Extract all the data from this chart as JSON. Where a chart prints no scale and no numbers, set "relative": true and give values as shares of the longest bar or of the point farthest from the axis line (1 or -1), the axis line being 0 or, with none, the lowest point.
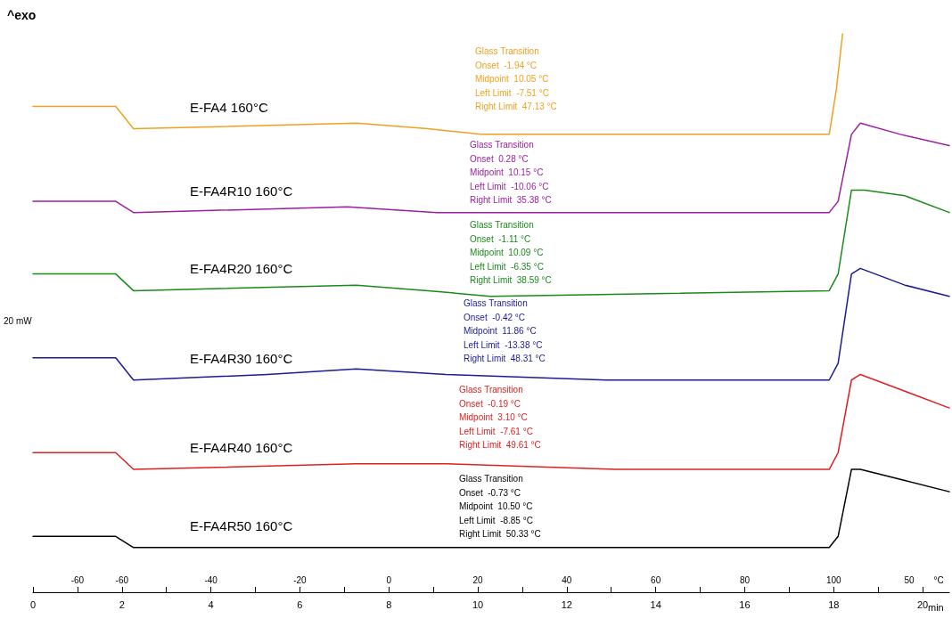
{
  "chart_data": {
    "type": "line",
    "relative": true,
    "xlabel": "min",
    "xlim": [
      0,
      20.6
    ],
    "xticks": [
      0,
      {
        "value": 1,
        "label": null
      },
      2,
      {
        "value": 3,
        "label": null
      },
      4,
      {
        "value": 5,
        "label": null
      },
      6,
      {
        "value": 7,
        "label": null
      },
      8,
      {
        "value": 9,
        "label": null
      },
      10,
      {
        "value": 11,
        "label": null
      },
      12,
      {
        "value": 13,
        "label": null
      },
      14,
      {
        "value": 15,
        "label": null
      },
      16,
      {
        "value": 17,
        "label": null
      },
      18,
      {
        "value": 19,
        "label": null
      },
      20
    ],
    "grid": false,
    "legend": false,
    "marker": "none",
    "line_style": "solid",
    "series": [
      {
        "name": "E-FA4 160°C",
        "color": "#f0a020",
        "x": [
          0,
          1.86,
          2.26,
          7.27,
          8.88,
          10.08,
          12.89,
          17.9,
          18.06,
          18.2
        ],
        "values": [
          0.87,
          0.87,
          0.83,
          0.84,
          0.83,
          0.82,
          0.82,
          0.82,
          0.9,
          1
        ]
      },
      {
        "name": "E-FA4R10 160°C",
        "color": "#9b1fa0",
        "x": [
          0,
          1.86,
          2.26,
          7.07,
          9.08,
          11.68,
          17.9,
          18.1,
          18.4,
          18.6,
          19.5,
          20.6
        ],
        "values": [
          0.7,
          0.7,
          0.68,
          0.69,
          0.68,
          0.68,
          0.68,
          0.7,
          0.82,
          0.84,
          0.82,
          0.8
        ]
      },
      {
        "name": "E-FA4R20 160°C",
        "color": "#1a8a1a",
        "x": [
          0,
          1.86,
          2.26,
          7.27,
          8.88,
          10.28,
          17.9,
          18.1,
          18.4,
          18.7,
          19.6,
          20.6
        ],
        "values": [
          0.57,
          0.57,
          0.54,
          0.55,
          0.54,
          0.53,
          0.54,
          0.57,
          0.72,
          0.72,
          0.71,
          0.68
        ]
      },
      {
        "name": "E-FA4R30 160°C",
        "color": "#1a1a9a",
        "x": [
          0,
          1.86,
          2.26,
          5.27,
          7.27,
          9.28,
          12.89,
          17.9,
          18.1,
          18.4,
          18.6,
          19.6,
          20.6
        ],
        "values": [
          0.42,
          0.42,
          0.38,
          0.39,
          0.4,
          0.39,
          0.38,
          0.38,
          0.41,
          0.57,
          0.58,
          0.55,
          0.53
        ]
      },
      {
        "name": "E-FA4R40 160°C",
        "color": "#e02020",
        "x": [
          0,
          1.86,
          2.26,
          7.27,
          9.28,
          13.09,
          17.9,
          18.1,
          18.4,
          18.6,
          19.6,
          20.6
        ],
        "values": [
          0.25,
          0.25,
          0.22,
          0.23,
          0.23,
          0.22,
          0.22,
          0.25,
          0.38,
          0.39,
          0.36,
          0.33
        ]
      },
      {
        "name": "E-FA4R50 160°C",
        "color": "#000000",
        "x": [
          0,
          1.86,
          2.26,
          5.27,
          9.08,
          13.09,
          17.9,
          18.1,
          18.4,
          18.6,
          19.6,
          20.6
        ],
        "values": [
          0.1,
          0.1,
          0.08,
          0.08,
          0.08,
          0.08,
          0.08,
          0.1,
          0.22,
          0.22,
          0.2,
          0.18
        ]
      }
    ],
    "annotations": [
      "^exo",
      "20 mW",
      "-60",
      "-60",
      "-40",
      "-20",
      "0",
      "20",
      "40",
      "60",
      "80",
      "100",
      "50",
      "°C",
      "Glass Transition\nOnset  -1.94 °C\nMidpoint  10.05 °C\nLeft Limit  -7.51 °C\nRight Limit  47.13 °C",
      "Glass Transition\nOnset  0.28 °C\nMidpoint  10.15 °C\nLeft Limit  -10.06 °C\nRight Limit  35.38 °C",
      "Glass Transition\nOnset  -1.11 °C\nMidpoint  10.09 °C\nLeft Limit  -6.35 °C\nRight Limit  38.59 °C",
      "Glass Transition\nOnset  -0.42 °C\nMidpoint  11.86 °C\nLeft Limit  -13.38 °C\nRight Limit  48.31 °C",
      "Glass Transition\nOnset  -0.19 °C\nMidpoint  3.10 °C\nLeft Limit  -7.61 °C\nRight Limit  49.61 °C",
      "Glass Transition\nOnset  -0.73 °C\nMidpoint  10.50 °C\nLeft Limit  -8.85 °C\nRight Limit  50.33 °C"
    ]
  }
}
